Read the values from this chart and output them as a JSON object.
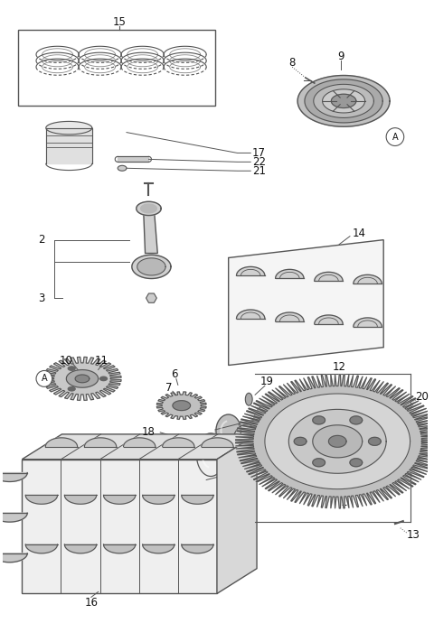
{
  "bg": "#ffffff",
  "lc": "#555555",
  "tc": "#111111",
  "fs": 8.5,
  "fw": 4.8,
  "fh": 6.9,
  "dpi": 100
}
